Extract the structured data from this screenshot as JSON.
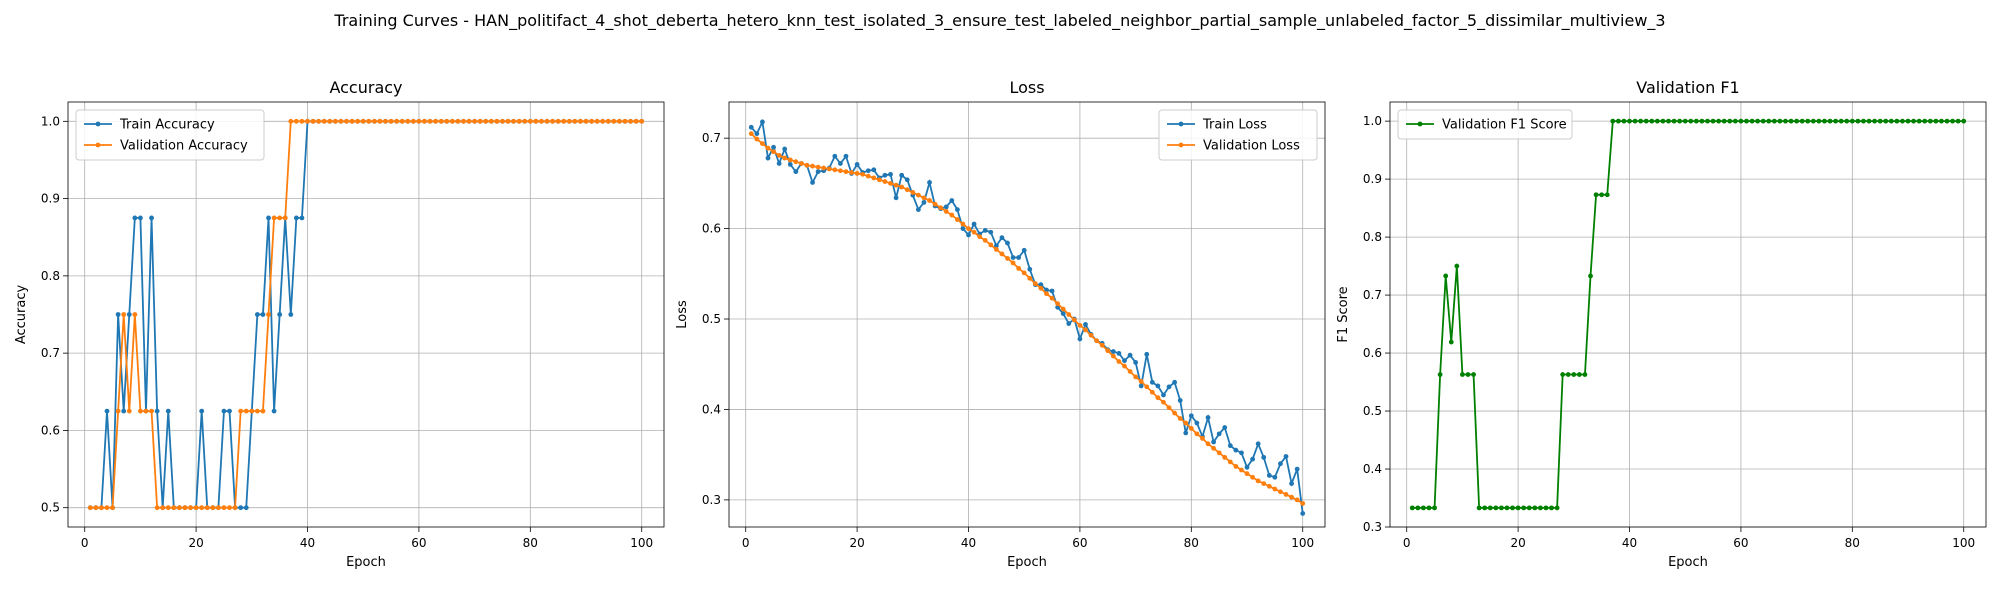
{
  "figure": {
    "title": "Training Curves - HAN_politifact_4_shot_deberta_hetero_knn_test_isolated_3_ensure_test_labeled_neighbor_partial_sample_unlabeled_factor_5_dissimilar_multiview_3"
  },
  "chart_data": [
    {
      "type": "line",
      "title": "Accuracy",
      "xlabel": "Epoch",
      "ylabel": "Accuracy",
      "xlim": [
        -3,
        104
      ],
      "ylim": [
        0.475,
        1.025
      ],
      "xticks": [
        0,
        20,
        40,
        60,
        80,
        100
      ],
      "yticks": [
        0.5,
        0.6,
        0.7,
        0.8,
        0.9,
        1.0
      ],
      "ytick_labels": [
        "0.5",
        "0.6",
        "0.7",
        "0.8",
        "0.9",
        "1.0"
      ],
      "grid": true,
      "legend_loc": "upper-left",
      "series": [
        {
          "name": "Train Accuracy",
          "color": "#1f77b4",
          "x_start": 1,
          "values": [
            0.5,
            0.5,
            0.5,
            0.625,
            0.5,
            0.75,
            0.625,
            0.75,
            0.875,
            0.875,
            0.625,
            0.875,
            0.625,
            0.5,
            0.625,
            0.5,
            0.5,
            0.5,
            0.5,
            0.5,
            0.625,
            0.5,
            0.5,
            0.5,
            0.625,
            0.625,
            0.5,
            0.5,
            0.5,
            0.625,
            0.75,
            0.75,
            0.875,
            0.625,
            0.75,
            0.875,
            0.75,
            0.875,
            0.875,
            1.0,
            1.0,
            1.0,
            1.0,
            1.0,
            1.0,
            1.0,
            1.0,
            1.0,
            1.0,
            1.0,
            1.0,
            1.0,
            1.0,
            1.0,
            1.0,
            1.0,
            1.0,
            1.0,
            1.0,
            1.0,
            1.0,
            1.0,
            1.0,
            1.0,
            1.0,
            1.0,
            1.0,
            1.0,
            1.0,
            1.0,
            1.0,
            1.0,
            1.0,
            1.0,
            1.0,
            1.0,
            1.0,
            1.0,
            1.0,
            1.0,
            1.0,
            1.0,
            1.0,
            1.0,
            1.0,
            1.0,
            1.0,
            1.0,
            1.0,
            1.0,
            1.0,
            1.0,
            1.0,
            1.0,
            1.0,
            1.0,
            1.0,
            1.0,
            1.0,
            1.0
          ]
        },
        {
          "name": "Validation Accuracy",
          "color": "#ff7f0e",
          "x_start": 1,
          "values": [
            0.5,
            0.5,
            0.5,
            0.5,
            0.5,
            0.625,
            0.75,
            0.625,
            0.75,
            0.625,
            0.625,
            0.625,
            0.5,
            0.5,
            0.5,
            0.5,
            0.5,
            0.5,
            0.5,
            0.5,
            0.5,
            0.5,
            0.5,
            0.5,
            0.5,
            0.5,
            0.5,
            0.625,
            0.625,
            0.625,
            0.625,
            0.625,
            0.75,
            0.875,
            0.875,
            0.875,
            1.0,
            1.0,
            1.0,
            1.0,
            1.0,
            1.0,
            1.0,
            1.0,
            1.0,
            1.0,
            1.0,
            1.0,
            1.0,
            1.0,
            1.0,
            1.0,
            1.0,
            1.0,
            1.0,
            1.0,
            1.0,
            1.0,
            1.0,
            1.0,
            1.0,
            1.0,
            1.0,
            1.0,
            1.0,
            1.0,
            1.0,
            1.0,
            1.0,
            1.0,
            1.0,
            1.0,
            1.0,
            1.0,
            1.0,
            1.0,
            1.0,
            1.0,
            1.0,
            1.0,
            1.0,
            1.0,
            1.0,
            1.0,
            1.0,
            1.0,
            1.0,
            1.0,
            1.0,
            1.0,
            1.0,
            1.0,
            1.0,
            1.0,
            1.0,
            1.0,
            1.0,
            1.0,
            1.0,
            1.0
          ]
        }
      ]
    },
    {
      "type": "line",
      "title": "Loss",
      "xlabel": "Epoch",
      "ylabel": "Loss",
      "xlim": [
        -3,
        104
      ],
      "ylim": [
        0.27,
        0.74
      ],
      "xticks": [
        0,
        20,
        40,
        60,
        80,
        100
      ],
      "yticks": [
        0.3,
        0.4,
        0.5,
        0.6,
        0.7
      ],
      "ytick_labels": [
        "0.3",
        "0.4",
        "0.5",
        "0.6",
        "0.7"
      ],
      "grid": true,
      "legend_loc": "upper-right",
      "series": [
        {
          "name": "Train Loss",
          "color": "#1f77b4",
          "x_start": 1,
          "values": [
            0.712,
            0.705,
            0.718,
            0.678,
            0.69,
            0.672,
            0.688,
            0.671,
            0.663,
            0.672,
            0.67,
            0.651,
            0.663,
            0.664,
            0.667,
            0.68,
            0.672,
            0.68,
            0.661,
            0.671,
            0.662,
            0.664,
            0.665,
            0.656,
            0.659,
            0.66,
            0.634,
            0.659,
            0.654,
            0.637,
            0.621,
            0.629,
            0.651,
            0.625,
            0.622,
            0.624,
            0.631,
            0.621,
            0.6,
            0.593,
            0.605,
            0.594,
            0.598,
            0.596,
            0.581,
            0.59,
            0.584,
            0.568,
            0.568,
            0.576,
            0.555,
            0.538,
            0.538,
            0.532,
            0.531,
            0.513,
            0.506,
            0.495,
            0.5,
            0.478,
            0.494,
            0.483,
            0.476,
            0.473,
            0.466,
            0.464,
            0.462,
            0.454,
            0.46,
            0.452,
            0.426,
            0.461,
            0.43,
            0.426,
            0.416,
            0.425,
            0.43,
            0.41,
            0.374,
            0.393,
            0.385,
            0.37,
            0.391,
            0.364,
            0.373,
            0.38,
            0.36,
            0.355,
            0.352,
            0.336,
            0.345,
            0.362,
            0.347,
            0.327,
            0.325,
            0.34,
            0.348,
            0.318,
            0.334,
            0.285
          ]
        },
        {
          "name": "Validation Loss",
          "color": "#ff7f0e",
          "x_start": 1,
          "values": [
            0.705,
            0.699,
            0.694,
            0.689,
            0.685,
            0.681,
            0.678,
            0.676,
            0.674,
            0.672,
            0.67,
            0.669,
            0.668,
            0.667,
            0.666,
            0.665,
            0.664,
            0.663,
            0.662,
            0.661,
            0.66,
            0.658,
            0.656,
            0.654,
            0.652,
            0.65,
            0.648,
            0.646,
            0.643,
            0.64,
            0.637,
            0.634,
            0.631,
            0.627,
            0.623,
            0.619,
            0.615,
            0.61,
            0.605,
            0.6,
            0.596,
            0.591,
            0.587,
            0.582,
            0.577,
            0.572,
            0.567,
            0.562,
            0.556,
            0.551,
            0.545,
            0.539,
            0.534,
            0.528,
            0.523,
            0.517,
            0.511,
            0.505,
            0.499,
            0.493,
            0.488,
            0.482,
            0.476,
            0.471,
            0.465,
            0.459,
            0.453,
            0.448,
            0.442,
            0.436,
            0.431,
            0.425,
            0.419,
            0.413,
            0.408,
            0.402,
            0.396,
            0.39,
            0.385,
            0.379,
            0.373,
            0.368,
            0.362,
            0.357,
            0.352,
            0.347,
            0.342,
            0.337,
            0.333,
            0.329,
            0.325,
            0.321,
            0.318,
            0.315,
            0.312,
            0.309,
            0.306,
            0.303,
            0.3,
            0.296
          ]
        }
      ]
    },
    {
      "type": "line",
      "title": "Validation F1",
      "xlabel": "Epoch",
      "ylabel": "F1 Score",
      "xlim": [
        -3,
        104
      ],
      "ylim": [
        0.3,
        1.033
      ],
      "xticks": [
        0,
        20,
        40,
        60,
        80,
        100
      ],
      "yticks": [
        0.3,
        0.4,
        0.5,
        0.6,
        0.7,
        0.8,
        0.9,
        1.0
      ],
      "ytick_labels": [
        "0.3",
        "0.4",
        "0.5",
        "0.6",
        "0.7",
        "0.8",
        "0.9",
        "1.0"
      ],
      "grid": true,
      "legend_loc": "upper-left",
      "series": [
        {
          "name": "Validation F1 Score",
          "color": "#008000",
          "x_start": 1,
          "values": [
            0.333,
            0.333,
            0.333,
            0.333,
            0.333,
            0.563,
            0.733,
            0.619,
            0.75,
            0.563,
            0.563,
            0.563,
            0.333,
            0.333,
            0.333,
            0.333,
            0.333,
            0.333,
            0.333,
            0.333,
            0.333,
            0.333,
            0.333,
            0.333,
            0.333,
            0.333,
            0.333,
            0.563,
            0.563,
            0.563,
            0.563,
            0.563,
            0.733,
            0.873,
            0.873,
            0.873,
            1.0,
            1.0,
            1.0,
            1.0,
            1.0,
            1.0,
            1.0,
            1.0,
            1.0,
            1.0,
            1.0,
            1.0,
            1.0,
            1.0,
            1.0,
            1.0,
            1.0,
            1.0,
            1.0,
            1.0,
            1.0,
            1.0,
            1.0,
            1.0,
            1.0,
            1.0,
            1.0,
            1.0,
            1.0,
            1.0,
            1.0,
            1.0,
            1.0,
            1.0,
            1.0,
            1.0,
            1.0,
            1.0,
            1.0,
            1.0,
            1.0,
            1.0,
            1.0,
            1.0,
            1.0,
            1.0,
            1.0,
            1.0,
            1.0,
            1.0,
            1.0,
            1.0,
            1.0,
            1.0,
            1.0,
            1.0,
            1.0,
            1.0,
            1.0,
            1.0,
            1.0,
            1.0,
            1.0,
            1.0
          ]
        }
      ]
    }
  ]
}
